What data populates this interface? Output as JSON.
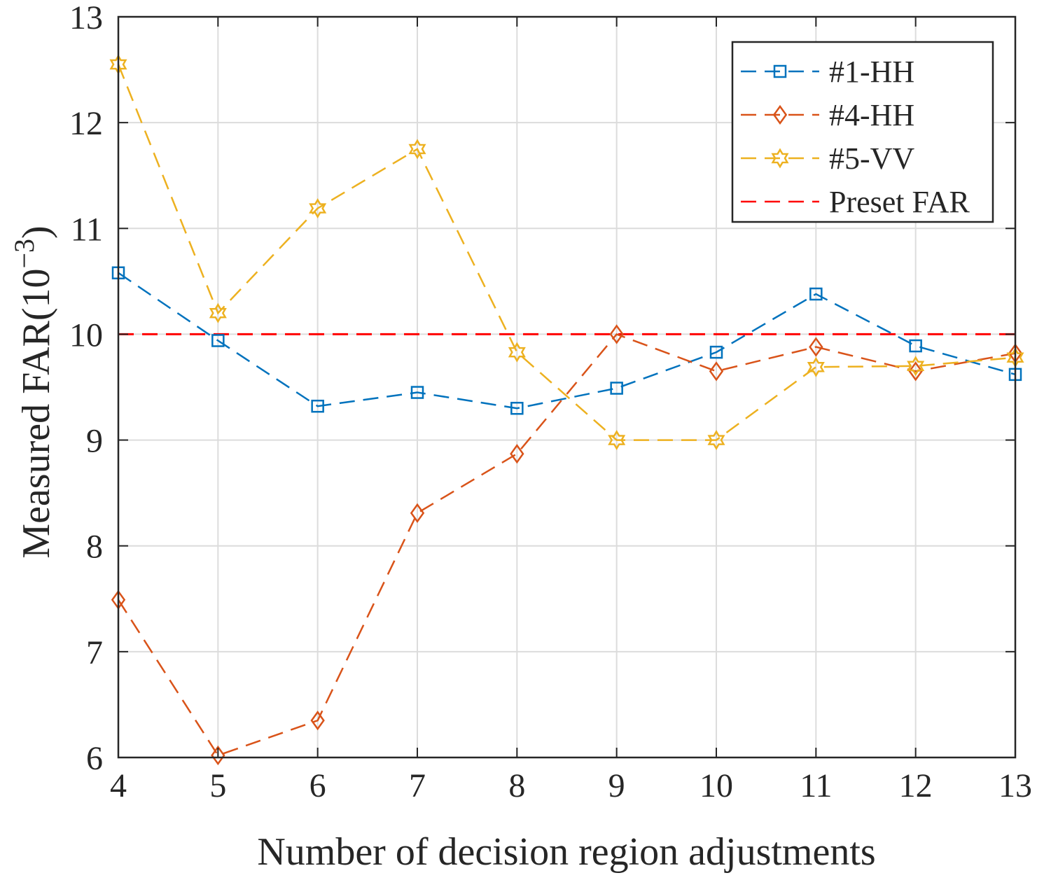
{
  "chart_data": {
    "type": "line",
    "title": "",
    "xlabel": "Number of decision region adjustments",
    "ylabel": "Measured FAR(10",
    "ylabel_exponent": "−3",
    "ylabel_close": ")",
    "xlim": [
      4,
      13
    ],
    "ylim": [
      6,
      13
    ],
    "grid": true,
    "legend_position": "top-right",
    "x": [
      4,
      5,
      6,
      7,
      8,
      9,
      10,
      11,
      12,
      13
    ],
    "x_tick_labels": [
      "4",
      "5",
      "6",
      "7",
      "8",
      "9",
      "10",
      "11",
      "12",
      "13"
    ],
    "y_ticks": [
      6,
      7,
      8,
      9,
      10,
      11,
      12,
      13
    ],
    "y_tick_labels": [
      "6",
      "7",
      "8",
      "9",
      "10",
      "11",
      "12",
      "13"
    ],
    "series": [
      {
        "name": "#1-HH",
        "marker": "square",
        "color": "#0072BD",
        "values": [
          10.58,
          9.94,
          9.32,
          9.45,
          9.3,
          9.49,
          9.83,
          10.38,
          9.89,
          9.62
        ]
      },
      {
        "name": "#4-HH",
        "marker": "diamond",
        "color": "#D95319",
        "values": [
          7.49,
          6.02,
          6.35,
          8.31,
          8.87,
          10.0,
          9.65,
          9.88,
          9.65,
          9.82
        ]
      },
      {
        "name": "#5-VV",
        "marker": "hexagram",
        "color": "#EDB120",
        "values": [
          12.55,
          10.2,
          11.19,
          11.75,
          9.83,
          9.0,
          9.0,
          9.69,
          9.7,
          9.78
        ]
      }
    ],
    "reference_line": {
      "name": "Preset FAR",
      "value": 10,
      "color": "#FF0000"
    }
  }
}
